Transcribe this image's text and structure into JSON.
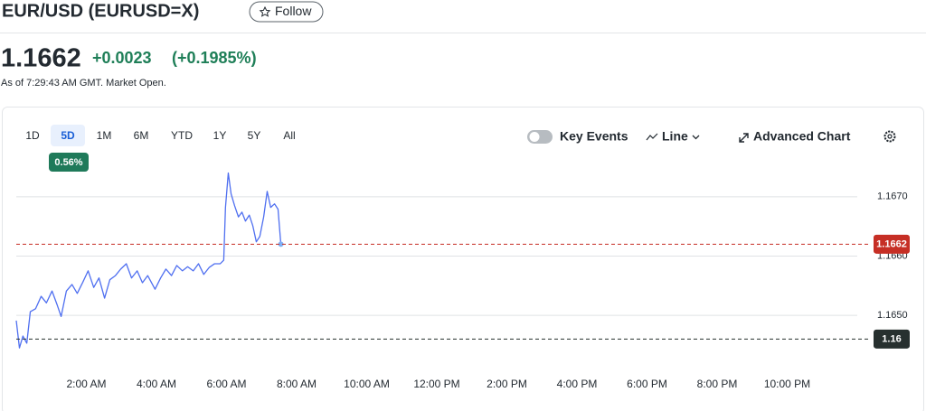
{
  "header": {
    "title": "EUR/USD (EURUSD=X)",
    "follow_button": "Follow"
  },
  "quote": {
    "price": "1.1662",
    "change": "+0.0023",
    "change_percent": "(+0.1985%)",
    "timestamp": "As of 7:29:43 AM GMT. Market Open."
  },
  "toolbar": {
    "ranges": [
      "1D",
      "5D",
      "1M",
      "6M",
      "YTD",
      "1Y",
      "5Y",
      "All"
    ],
    "selected_range": "5D",
    "range_change": "0.56%",
    "key_events": "Key Events",
    "chart_type": "Line",
    "advanced_chart": "Advanced Chart"
  },
  "chart_data": {
    "type": "line",
    "x": [
      0,
      0.09,
      0.19,
      0.3,
      0.4,
      0.55,
      0.71,
      0.86,
      1.02,
      1.17,
      1.28,
      1.43,
      1.59,
      1.74,
      1.9,
      2.05,
      2.21,
      2.36,
      2.52,
      2.67,
      2.83,
      2.98,
      3.14,
      3.29,
      3.45,
      3.6,
      3.75,
      3.96,
      4.12,
      4.27,
      4.43,
      4.58,
      4.74,
      4.89,
      5.05,
      5.2,
      5.35,
      5.51,
      5.66,
      5.82,
      5.92,
      5.97,
      6.05,
      6.13,
      6.23,
      6.34,
      6.44,
      6.54,
      6.65,
      6.75,
      6.85,
      6.95,
      7.06,
      7.16,
      7.26,
      7.37,
      7.47,
      7.55
    ],
    "series": [
      {
        "color": "#4f6ff0",
        "values": [
          1.16491,
          1.16445,
          1.16465,
          1.16453,
          1.16506,
          1.16511,
          1.16532,
          1.16521,
          1.16541,
          1.16517,
          1.16498,
          1.16541,
          1.16552,
          1.16537,
          1.16556,
          1.16575,
          1.16547,
          1.16563,
          1.16529,
          1.1656,
          1.16567,
          1.16578,
          1.16587,
          1.16563,
          1.16575,
          1.16555,
          1.16567,
          1.16544,
          1.16563,
          1.16578,
          1.16567,
          1.16584,
          1.16575,
          1.16582,
          1.16575,
          1.16587,
          1.16569,
          1.16581,
          1.16587,
          1.16587,
          1.16593,
          1.16682,
          1.1674,
          1.16705,
          1.16685,
          1.16666,
          1.16674,
          1.16659,
          1.16669,
          1.16651,
          1.16624,
          1.16633,
          1.16666,
          1.16709,
          1.16682,
          1.16688,
          1.16679,
          1.1662
        ]
      }
    ],
    "xlim": [
      0,
      24
    ],
    "xticks": [
      {
        "value": 2,
        "label": "2:00 AM"
      },
      {
        "value": 4,
        "label": "4:00 AM"
      },
      {
        "value": 6,
        "label": "6:00 AM"
      },
      {
        "value": 8,
        "label": "8:00 AM"
      },
      {
        "value": 10,
        "label": "10:00 AM"
      },
      {
        "value": 12,
        "label": "12:00 PM"
      },
      {
        "value": 14,
        "label": "2:00 PM"
      },
      {
        "value": 16,
        "label": "4:00 PM"
      },
      {
        "value": 18,
        "label": "6:00 PM"
      },
      {
        "value": 20,
        "label": "8:00 PM"
      },
      {
        "value": 22,
        "label": "10:00 PM"
      }
    ],
    "ylim": [
      1.1643,
      1.1675
    ],
    "yticks": [
      {
        "value": 1.165,
        "label": "1.1650"
      },
      {
        "value": 1.166,
        "label": "1.1660"
      },
      {
        "value": 1.167,
        "label": "1.1670"
      }
    ],
    "grid": true,
    "reference_lines": [
      {
        "value": 1.1662,
        "color": "#c62f25"
      },
      {
        "value": 1.1646,
        "label": "1.16",
        "color": "#27302f"
      }
    ]
  }
}
